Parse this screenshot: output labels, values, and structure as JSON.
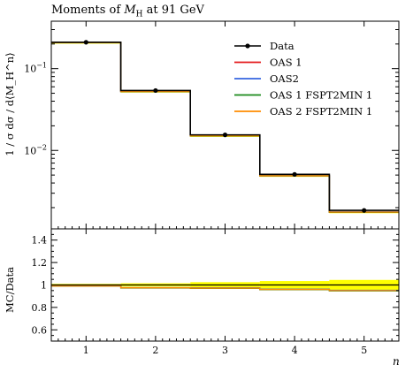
{
  "title": "Moments of M_H at 91 GeV",
  "title_parts": {
    "prefix": "Moments of ",
    "symbol": "M",
    "subscript": "H",
    "suffix": " at 91 GeV"
  },
  "ylabel_main": "1 / σ dσ / d⟨M_H^n⟩",
  "ylabel_ratio": "MC/Data",
  "xlabel": "n",
  "chart_data": [
    {
      "type": "line",
      "style": "step histogram with data points, log y axis",
      "x": [
        1,
        2,
        3,
        4,
        5
      ],
      "bin_edges": [
        0.5,
        1.5,
        2.5,
        3.5,
        4.5,
        5.5
      ],
      "xlim": [
        0.5,
        5.5
      ],
      "yscale": "log",
      "ylim": [
        0.0011,
        0.38
      ],
      "x_ticks": [
        "1",
        "2",
        "3",
        "4",
        "5"
      ],
      "y_ticks": [
        {
          "value": 0.1,
          "base": "10",
          "exp": "−1"
        },
        {
          "value": 0.01,
          "base": "10",
          "exp": "−2"
        }
      ],
      "legend_position": "top-right",
      "data": {
        "name": "Data",
        "color": "#000000",
        "values": [
          0.21,
          0.054,
          0.0155,
          0.0051,
          0.00185
        ]
      },
      "series": [
        {
          "name": "OAS 1",
          "color": "#e41a1c",
          "values": [
            0.208,
            0.0525,
            0.0151,
            0.0049,
            0.00176
          ]
        },
        {
          "name": "OAS2",
          "color": "#3465e0",
          "values": [
            0.208,
            0.0526,
            0.0151,
            0.0049,
            0.00177
          ]
        },
        {
          "name": "OAS 1 FSPT2MIN 1",
          "color": "#1a8a1a",
          "values": [
            0.208,
            0.0524,
            0.015,
            0.00488,
            0.00175
          ]
        },
        {
          "name": "OAS 2 FSPT2MIN 1",
          "color": "#ff8c00",
          "values": [
            0.208,
            0.0525,
            0.0151,
            0.0049,
            0.00176
          ]
        }
      ]
    },
    {
      "type": "line",
      "style": "ratio MC/Data with yellow uncertainty band",
      "x": [
        1,
        2,
        3,
        4,
        5
      ],
      "bin_edges": [
        0.5,
        1.5,
        2.5,
        3.5,
        4.5,
        5.5
      ],
      "xlim": [
        0.5,
        5.5
      ],
      "ylim": [
        0.5,
        1.5
      ],
      "ylabel": "MC/Data",
      "y_ticks": [
        "0.6",
        "0.8",
        "1",
        "1.2",
        "1.4"
      ],
      "band_color": "#ffff00",
      "band": [
        {
          "low": 0.99,
          "high": 1.01
        },
        {
          "low": 0.985,
          "high": 1.015
        },
        {
          "low": 0.975,
          "high": 1.025
        },
        {
          "low": 0.965,
          "high": 1.035
        },
        {
          "low": 0.95,
          "high": 1.045
        }
      ],
      "series": [
        {
          "name": "OAS 1",
          "color": "#e41a1c",
          "values": [
            0.99,
            0.975,
            0.973,
            0.96,
            0.95
          ]
        },
        {
          "name": "OAS2",
          "color": "#3465e0",
          "values": [
            0.99,
            0.976,
            0.974,
            0.962,
            0.953
          ]
        },
        {
          "name": "OAS 1 FSPT2MIN 1",
          "color": "#1a8a1a",
          "values": [
            0.99,
            0.973,
            0.97,
            0.958,
            0.947
          ]
        },
        {
          "name": "OAS 2 FSPT2MIN 1",
          "color": "#ff8c00",
          "values": [
            0.99,
            0.975,
            0.972,
            0.96,
            0.95
          ]
        }
      ]
    }
  ]
}
